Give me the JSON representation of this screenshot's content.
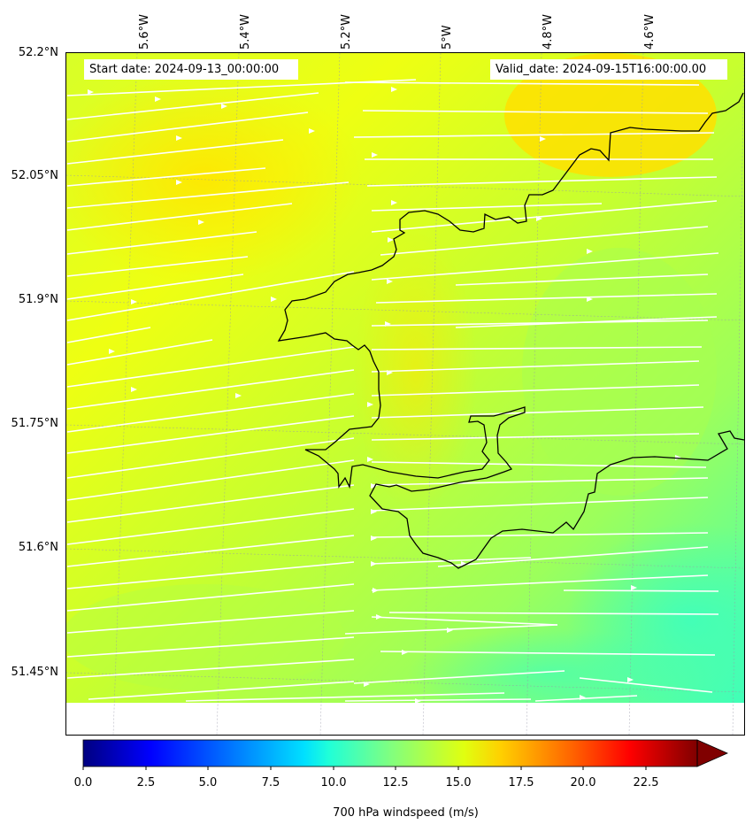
{
  "map": {
    "start_date_text": "Start date: 2024-09-13_00:00:00",
    "valid_date_text": "Valid_date: 2024-09-15T16:00:00.00",
    "longitude_labels": [
      "5.6°W",
      "5.4°W",
      "5.2°W",
      "5°W",
      "4.8°W",
      "4.6°W"
    ],
    "latitude_labels": [
      "52.2°N",
      "52.05°N",
      "51.9°N",
      "51.75°N",
      "51.6°N",
      "51.45°N"
    ],
    "field": "700 hPa windspeed",
    "streamline_color": "#ffffff",
    "coastline_color": "#000000"
  },
  "colorbar": {
    "label": "700 hPa windspeed (m/s)",
    "ticks": [
      "0.0",
      "2.5",
      "5.0",
      "7.5",
      "10.0",
      "12.5",
      "15.0",
      "17.5",
      "20.0",
      "22.5"
    ],
    "range": [
      0,
      25
    ],
    "colormap": "jet",
    "extend": "max"
  }
}
